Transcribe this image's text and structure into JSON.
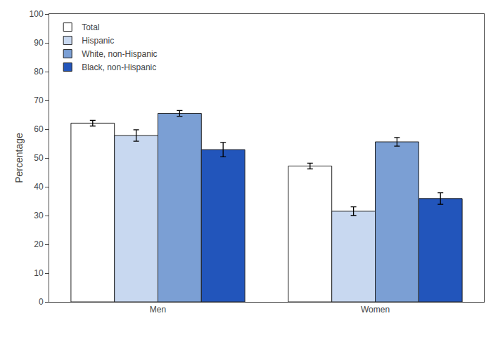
{
  "chart_data": {
    "type": "bar",
    "categories": [
      "Men",
      "Women"
    ],
    "series": [
      {
        "name": "Total",
        "color": "#ffffff",
        "values": [
          62.1,
          47.2
        ],
        "errors": [
          1.0,
          1.0
        ]
      },
      {
        "name": "Hispanic",
        "color": "#c8d8f0",
        "values": [
          57.8,
          31.5
        ],
        "errors": [
          2.0,
          1.5
        ]
      },
      {
        "name": "White, non-Hispanic",
        "color": "#7b9fd4",
        "values": [
          65.5,
          55.6
        ],
        "errors": [
          1.0,
          1.5
        ]
      },
      {
        "name": "Black, non-Hispanic",
        "color": "#2255bb",
        "values": [
          52.9,
          35.9
        ],
        "errors": [
          2.5,
          2.0
        ]
      }
    ],
    "ylabel": "Percentage",
    "ylim": [
      0,
      100
    ],
    "yticks": [
      0,
      10,
      20,
      30,
      40,
      50,
      60,
      70,
      80,
      90,
      100
    ],
    "grid": false,
    "legend": "upper left"
  }
}
